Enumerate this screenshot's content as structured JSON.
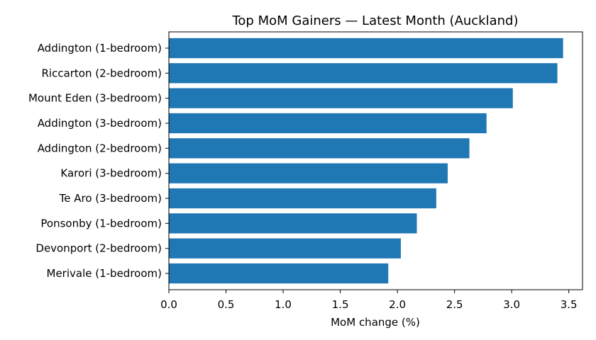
{
  "chart_data": {
    "type": "bar",
    "orientation": "horizontal",
    "title": "Top MoM Gainers — Latest Month (Auckland)",
    "xlabel": "MoM change (%)",
    "ylabel": "",
    "xlim": [
      0,
      3.62
    ],
    "xticks": [
      0.0,
      0.5,
      1.0,
      1.5,
      2.0,
      2.5,
      3.0,
      3.5
    ],
    "xtick_labels": [
      "0.0",
      "0.5",
      "1.0",
      "1.5",
      "2.0",
      "2.5",
      "3.0",
      "3.5"
    ],
    "grid": false,
    "bar_color": "#1f77b4",
    "categories": [
      "Addington (1-bedroom)",
      "Riccarton (2-bedroom)",
      "Mount Eden (3-bedroom)",
      "Addington (3-bedroom)",
      "Addington (2-bedroom)",
      "Karori (3-bedroom)",
      "Te Aro (3-bedroom)",
      "Ponsonby (1-bedroom)",
      "Devonport (2-bedroom)",
      "Merivale (1-bedroom)"
    ],
    "values": [
      3.45,
      3.4,
      3.01,
      2.78,
      2.63,
      2.44,
      2.34,
      2.17,
      2.03,
      1.92
    ]
  }
}
